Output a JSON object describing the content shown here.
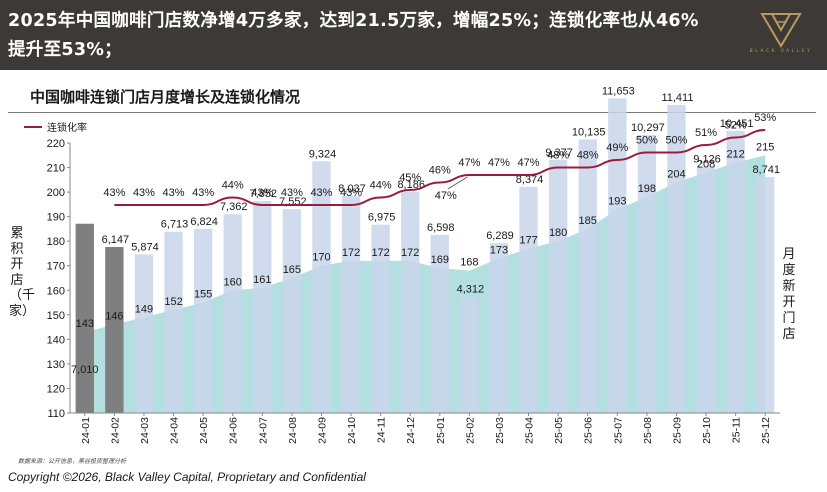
{
  "headline": "2025年中国咖啡门店数净增4万多家，达到21.5万家，增幅25%；连锁化率也从46%提升至53%；",
  "brand": {
    "logo_text": "BLACK VALLEY",
    "accent_color": "#b89a5e"
  },
  "source_note": "数据来源：公开信息，黑谷投资整理分析",
  "copyright": "Copyright ©2026, Black Valley Capital, Proprietary and Confidential",
  "chart_data": {
    "type": "area+bar+line",
    "title": "中国咖啡连锁门店月度增长及连锁化情况",
    "ylabel_left": "累积开店（千家）",
    "ylabel_right": "月度新开门店",
    "legend": [
      "连锁化率"
    ],
    "legend_position": "top-left",
    "ylim": [
      110,
      220
    ],
    "yticks": [
      110,
      120,
      130,
      140,
      150,
      160,
      170,
      180,
      190,
      200,
      210,
      220
    ],
    "categories": [
      "24-01",
      "24-02",
      "24-03",
      "24-04",
      "24-05",
      "24-06",
      "24-07",
      "24-08",
      "24-09",
      "24-10",
      "24-11",
      "24-12",
      "25-01",
      "25-02",
      "25-03",
      "25-04",
      "25-05",
      "25-06",
      "25-07",
      "25-08",
      "25-09",
      "25-10",
      "25-11",
      "25-12"
    ],
    "cumulative_stores": [
      143,
      146,
      149,
      152,
      155,
      160,
      161,
      165,
      170,
      172,
      172,
      172,
      169,
      168,
      173,
      177,
      180,
      185,
      193,
      198,
      204,
      208,
      212,
      215
    ],
    "monthly_new_stores": [
      7010,
      6147,
      5874,
      6713,
      6824,
      7362,
      7852,
      7552,
      9324,
      8037,
      6975,
      8186,
      6598,
      4312,
      6289,
      8374,
      9377,
      10135,
      11653,
      10297,
      11411,
      9126,
      10451,
      8741
    ],
    "monthly_new_labels": [
      "7,010",
      "6,147",
      "5,874",
      "6,713",
      "6,824",
      "7,362",
      "7,852",
      "7,552",
      "9,324",
      "8,037",
      "6,975",
      "8,186",
      "6,598",
      "4,312",
      "6,289",
      "8,374",
      "9,377",
      "10,135",
      "11,653",
      "10,297",
      "11,411",
      "9,126",
      "10,451",
      "8,741"
    ],
    "chain_rate": [
      null,
      43,
      43,
      43,
      43,
      44,
      43,
      43,
      43,
      43,
      44,
      45,
      46,
      47,
      47,
      47,
      48,
      48,
      49,
      50,
      50,
      51,
      52,
      53
    ],
    "chain_rate_labels": [
      "",
      "43%",
      "43%",
      "43%",
      "43%",
      "44%",
      "43%",
      "43%",
      "43%",
      "43%",
      "44%",
      "45%",
      "46%",
      "47%",
      "47%",
      "47%",
      "48%",
      "48%",
      "49%",
      "50%",
      "50%",
      "51%",
      "52%",
      "53%"
    ],
    "chain_rate_extra_label": "47%",
    "colors": {
      "area": "#b4dfe1",
      "bar": "#c8d6ea",
      "highlight_bar": "#7f7f7f",
      "line": "#9b1b3a"
    }
  }
}
